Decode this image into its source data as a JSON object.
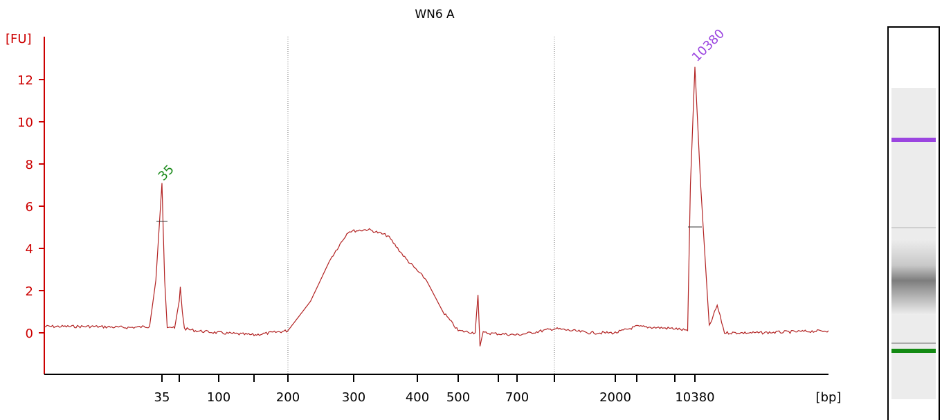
{
  "chart_data": {
    "type": "line",
    "title": "WN6 A",
    "ylabel": "[FU]",
    "xlabel": "[bp]",
    "ylim": [
      -1.8,
      14
    ],
    "yticks": [
      0,
      2,
      4,
      6,
      8,
      10,
      12
    ],
    "grid": false,
    "x_scale": "piecewise (labelled bp ticks)",
    "xticks_labeled": [
      "35",
      "100",
      "200",
      "300",
      "400",
      "500",
      "700",
      "2000",
      "10380"
    ],
    "peak_labels": [
      {
        "label": "35",
        "color": "#1a8a1a"
      },
      {
        "label": "10380",
        "color": "#9b45e0"
      }
    ],
    "series": [
      {
        "color": "#b22222",
        "points": [
          {
            "x": 20,
            "y": 0.3
          },
          {
            "x": 25,
            "y": 0.3
          },
          {
            "x": 30,
            "y": 0.25
          },
          {
            "x": 33,
            "y": 0.3
          },
          {
            "x": 34,
            "y": 2.5
          },
          {
            "x": 35,
            "y": 7.1
          },
          {
            "x": 36,
            "y": 2.5
          },
          {
            "x": 37,
            "y": 0.3
          },
          {
            "x": 38,
            "y": 0.3
          },
          {
            "x": 40,
            "y": 0.2
          },
          {
            "x": 42,
            "y": 1.5
          },
          {
            "x": 43,
            "y": 2.2
          },
          {
            "x": 45,
            "y": 1.0
          },
          {
            "x": 47,
            "y": 0.2
          },
          {
            "x": 60,
            "y": 0.1
          },
          {
            "x": 100,
            "y": 0.0
          },
          {
            "x": 150,
            "y": -0.1
          },
          {
            "x": 200,
            "y": 0.1
          },
          {
            "x": 230,
            "y": 1.5
          },
          {
            "x": 260,
            "y": 3.5
          },
          {
            "x": 290,
            "y": 4.8
          },
          {
            "x": 320,
            "y": 4.9
          },
          {
            "x": 350,
            "y": 4.6
          },
          {
            "x": 380,
            "y": 3.5
          },
          {
            "x": 420,
            "y": 2.5
          },
          {
            "x": 460,
            "y": 1.0
          },
          {
            "x": 500,
            "y": 0.1
          },
          {
            "x": 540,
            "y": 0.0
          },
          {
            "x": 547,
            "y": 1.8
          },
          {
            "x": 552,
            "y": -0.6
          },
          {
            "x": 560,
            "y": 0.0
          },
          {
            "x": 700,
            "y": -0.1
          },
          {
            "x": 800,
            "y": 0.0
          },
          {
            "x": 1000,
            "y": 0.2
          },
          {
            "x": 1500,
            "y": 0.0
          },
          {
            "x": 2000,
            "y": 0.0
          },
          {
            "x": 4000,
            "y": 0.3
          },
          {
            "x": 7000,
            "y": 0.2
          },
          {
            "x": 9000,
            "y": 0.1
          },
          {
            "x": 9500,
            "y": 7.0
          },
          {
            "x": 10380,
            "y": 12.6
          },
          {
            "x": 11000,
            "y": 7.0
          },
          {
            "x": 12000,
            "y": 0.3
          },
          {
            "x": 13000,
            "y": 1.3
          },
          {
            "x": 14000,
            "y": 0.0
          },
          {
            "x": 20000,
            "y": 0.0
          },
          {
            "x": 40000,
            "y": 0.1
          }
        ]
      }
    ],
    "gel_lane": {
      "bands": [
        {
          "name": "upper marker",
          "color": "#9b45e0"
        },
        {
          "name": "lower marker",
          "color": "#138a13"
        }
      ]
    }
  }
}
